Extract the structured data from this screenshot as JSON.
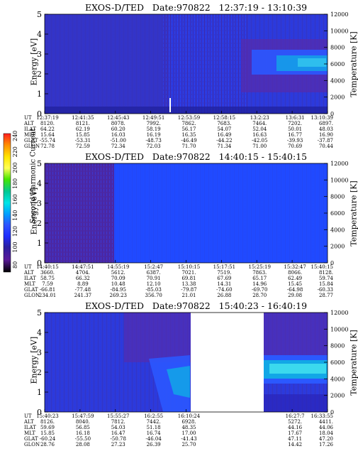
{
  "colors": {
    "bg_dark": "#2a1fb4",
    "bg_mid": "#2e3ad8",
    "bg_blue": "#1f4dff",
    "hot_purple": "#5a2aa8",
    "cyan": "#12a7e6",
    "light_cyan": "#46e6f0"
  },
  "colorbar": {
    "label": "Second Harmonic Current",
    "ticks": [
      "240",
      "220",
      "200",
      "180",
      "160",
      "140",
      "120",
      "100",
      "80"
    ],
    "colors": [
      "#ff1f1f",
      "#ff8c00",
      "#ffe600",
      "#ffff55",
      "#46e600",
      "#00c896",
      "#00e6e6",
      "#00a0ff",
      "#2f54ff",
      "#1f2dff",
      "#2a1fa0",
      "#5a1a9a",
      "#000000"
    ]
  },
  "chart_data": [
    {
      "type": "heatmap",
      "title": "EXOS-D/TED   Date:970822   12:37:19 - 13:10:39",
      "ylabel": "Energy [eV]",
      "y2label": "Temperature [K]",
      "ylim": [
        0,
        5
      ],
      "y2lim": [
        0,
        12000
      ],
      "yticks": [
        "0",
        "1",
        "2",
        "3",
        "4",
        "5"
      ],
      "y2ticks": [
        "0",
        "2000",
        "4000",
        "6000",
        "8000",
        "10000",
        "12000"
      ],
      "ephemeris": {
        "labels": [
          "UT",
          "ALT",
          "ILAT",
          "MLT",
          "GLAT",
          "GLON"
        ],
        "columns": [
          [
            "12:37:19",
            "8120.",
            "64.22",
            "15.64",
            "-55.74",
            "72.78"
          ],
          [
            "12:41:35",
            "8121.",
            "62.19",
            "15.85",
            "-53.31",
            "72.59"
          ],
          [
            "12:45:43",
            "8078.",
            "60.20",
            "16.03",
            "-51.00",
            "72.34"
          ],
          [
            "12:49:51",
            "7992.",
            "58.19",
            "16.19",
            "-48.73",
            "72.03"
          ],
          [
            "12:53:59",
            "7862.",
            "56.17",
            "16.35",
            "-46.49",
            "71.70"
          ],
          [
            "12:58:15",
            "7683.",
            "54.07",
            "16.49",
            "-44.22",
            "71.34"
          ],
          [
            "13:2:23",
            "7464.",
            "52.04",
            "16.63",
            "-42.05",
            "71.00"
          ],
          [
            "13:6:31",
            "7202.",
            "50.01",
            "16.77",
            "-39.93",
            "70.69"
          ],
          [
            "13:10:39",
            "6897.",
            "48.03",
            "16.90",
            "-37.87",
            "70.44"
          ]
        ]
      }
    },
    {
      "type": "heatmap",
      "title": "EXOS-D/TED   Date:970822   14:40:15 - 15:40:15",
      "ylabel": "Energy [eV]",
      "y2label": "Temperature [K]",
      "ylim": [
        0,
        5
      ],
      "y2lim": [
        0,
        12000
      ],
      "yticks": [
        "0",
        "1",
        "2",
        "3",
        "4",
        "5"
      ],
      "y2ticks": [
        "0",
        "2000",
        "4000",
        "6000",
        "8000",
        "10000",
        "12000"
      ],
      "ephemeris": {
        "labels": [
          "UT",
          "ALT",
          "ILAT",
          "MLT",
          "GLAT",
          "GLON"
        ],
        "columns": [
          [
            "14:40:15",
            "3660.",
            "58.75",
            "7.59",
            "-66.81",
            "234.01"
          ],
          [
            "14:47:51",
            "4704.",
            "66.32",
            "8.89",
            "-77.48",
            "241.37"
          ],
          [
            "14:55:19",
            "5612.",
            "70.09",
            "10.48",
            "-84.95",
            "269.23"
          ],
          [
            "15:2:47",
            "6387.",
            "70.91",
            "12.10",
            "-85.03",
            "356.70"
          ],
          [
            "15:10:15",
            "7021.",
            "69.81",
            "13.38",
            "-79.87",
            "21.01"
          ],
          [
            "15:17:51",
            "7519.",
            "67.69",
            "14.31",
            "-74.60",
            "26.88"
          ],
          [
            "15:25:19",
            "7863.",
            "65.17",
            "14.96",
            "-69.70",
            "28.70"
          ],
          [
            "15:32:47",
            "8066.",
            "62.49",
            "15.45",
            "-64.98",
            "29.08"
          ],
          [
            "15:40:15",
            "8128.",
            "59.74",
            "15.84",
            "-60.33",
            "28.77"
          ]
        ]
      }
    },
    {
      "type": "heatmap",
      "title": "EXOS-D/TED   Date:970822   15:40:23 - 16:40:19",
      "ylabel": "Energy [eV]",
      "y2label": "Temperature [K]",
      "ylim": [
        0,
        5
      ],
      "y2lim": [
        0,
        12000
      ],
      "yticks": [
        "0",
        "1",
        "2",
        "3",
        "4",
        "5"
      ],
      "y2ticks": [
        "0",
        "2000",
        "4000",
        "6000",
        "8000",
        "10000",
        "12000"
      ],
      "ephemeris": {
        "labels": [
          "UT",
          "ALT",
          "ILAT",
          "MLT",
          "GLAT",
          "GLON"
        ],
        "columns": [
          [
            "15:40:23",
            "8126.",
            "59.69",
            "15.85",
            "-60.24",
            "28.76"
          ],
          [
            "15:47:59",
            "8040.",
            "56.85",
            "16.18",
            "-55.50",
            "28.08"
          ],
          [
            "15:55:27",
            "7812.",
            "54.03",
            "16.47",
            "-50.78",
            "27.23"
          ],
          [
            "16:2:55",
            "7442.",
            "51.18",
            "16.74",
            "-46.04",
            "26.39"
          ],
          [
            "16:10:24",
            "6928.",
            "48.35",
            "17.00",
            "-41.43",
            "25.70"
          ],
          [
            "",
            "",
            "",
            "",
            "",
            ""
          ],
          [
            "",
            "",
            "",
            "",
            "",
            ""
          ],
          [
            "16:27:7",
            "5272.",
            "44.16",
            "17.67",
            "47.11",
            "14.42"
          ],
          [
            "16:33:55",
            "4411.",
            "44.06",
            "18.04",
            "47.20",
            "17.26"
          ]
        ]
      }
    }
  ]
}
